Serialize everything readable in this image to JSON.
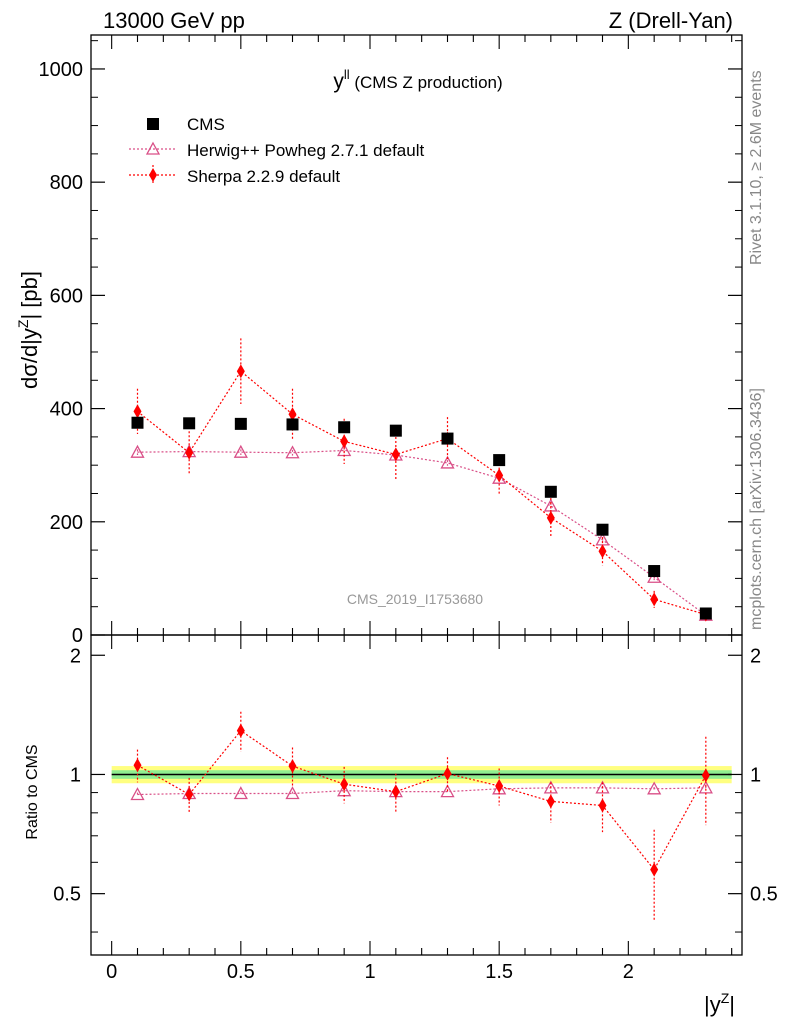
{
  "header": {
    "left": "13000 GeV pp",
    "right": "Z (Drell-Yan)"
  },
  "side_labels": {
    "top": "Rivet 3.1.10, ≥ 2.6M events",
    "bottom": "mcplots.cern.ch [arXiv:1306.3436]"
  },
  "watermark": "CMS_2019_I1753680",
  "colors": {
    "cms": "#000000",
    "herwig": "#d94f87",
    "sherpa": "#ff0000",
    "band_outer": "#ffff80",
    "band_inner": "#90ee90"
  },
  "chart_data": [
    {
      "type": "scatter",
      "title_main": "y",
      "title_sup": "ll",
      "title_rest": " (CMS Z production)",
      "ylabel": "dσ/d|y^Z| [pb]",
      "xlim": [
        -0.08,
        2.44
      ],
      "ylim": [
        0,
        1060
      ],
      "yticks": [
        0,
        200,
        400,
        600,
        800,
        1000
      ],
      "legend_position": "top-left",
      "series": [
        {
          "name": "CMS",
          "marker": "square",
          "x": [
            0.1,
            0.3,
            0.5,
            0.7,
            0.9,
            1.1,
            1.3,
            1.5,
            1.7,
            1.9,
            2.1,
            2.3
          ],
          "y": [
            375,
            374,
            373,
            372,
            367,
            361,
            347,
            309,
            253,
            186,
            113,
            38
          ]
        },
        {
          "name": "Herwig++ Powheg 2.7.1 default",
          "marker": "open-triangle",
          "x": [
            0.1,
            0.3,
            0.5,
            0.7,
            0.9,
            1.1,
            1.3,
            1.5,
            1.7,
            1.9,
            2.1,
            2.3
          ],
          "y": [
            323,
            324,
            323,
            322,
            326,
            318,
            304,
            277,
            228,
            168,
            102,
            35
          ],
          "yerr": [
            5,
            5,
            5,
            5,
            5,
            5,
            5,
            5,
            5,
            5,
            5,
            3
          ]
        },
        {
          "name": "Sherpa 2.2.9 default",
          "marker": "diamond",
          "x": [
            0.1,
            0.3,
            0.5,
            0.7,
            0.9,
            1.1,
            1.3,
            1.5,
            1.7,
            1.9,
            2.1,
            2.3
          ],
          "y": [
            395,
            322,
            466,
            390,
            342,
            319,
            347,
            282,
            207,
            148,
            63,
            36
          ],
          "yerr": [
            40,
            38,
            58,
            45,
            40,
            45,
            38,
            35,
            35,
            25,
            15,
            10
          ]
        }
      ]
    },
    {
      "type": "scatter",
      "ylabel": "Ratio to CMS",
      "xlabel": "|y^Z|",
      "xlim": [
        -0.08,
        2.44
      ],
      "ylim": [
        0.35,
        2.25
      ],
      "yticks": [
        0.5,
        1,
        2
      ],
      "xticks": [
        0,
        0.5,
        1,
        1.5,
        2
      ],
      "reference_line": 1,
      "band_outer": [
        0.95,
        1.05
      ],
      "band_inner": [
        0.975,
        1.025
      ],
      "series": [
        {
          "name": "Herwig++ Powheg 2.7.1 default",
          "x": [
            0.1,
            0.3,
            0.5,
            0.7,
            0.9,
            1.1,
            1.3,
            1.5,
            1.7,
            1.9,
            2.1,
            2.3
          ],
          "y": [
            0.89,
            0.895,
            0.895,
            0.895,
            0.91,
            0.905,
            0.905,
            0.92,
            0.925,
            0.925,
            0.92,
            0.925
          ],
          "yerr": [
            0.01,
            0.01,
            0.01,
            0.01,
            0.01,
            0.01,
            0.01,
            0.01,
            0.01,
            0.01,
            0.01,
            0.01
          ]
        },
        {
          "name": "Sherpa 2.2.9 default",
          "x": [
            0.1,
            0.3,
            0.5,
            0.7,
            0.9,
            1.1,
            1.3,
            1.5,
            1.7,
            1.9,
            2.1,
            2.3
          ],
          "y": [
            1.055,
            0.89,
            1.29,
            1.05,
            0.945,
            0.905,
            1.005,
            0.935,
            0.855,
            0.835,
            0.575,
            0.995
          ],
          "yerr": [
            0.1,
            0.09,
            0.15,
            0.12,
            0.1,
            0.1,
            0.1,
            0.1,
            0.1,
            0.12,
            0.15,
            0.25
          ]
        }
      ]
    }
  ]
}
